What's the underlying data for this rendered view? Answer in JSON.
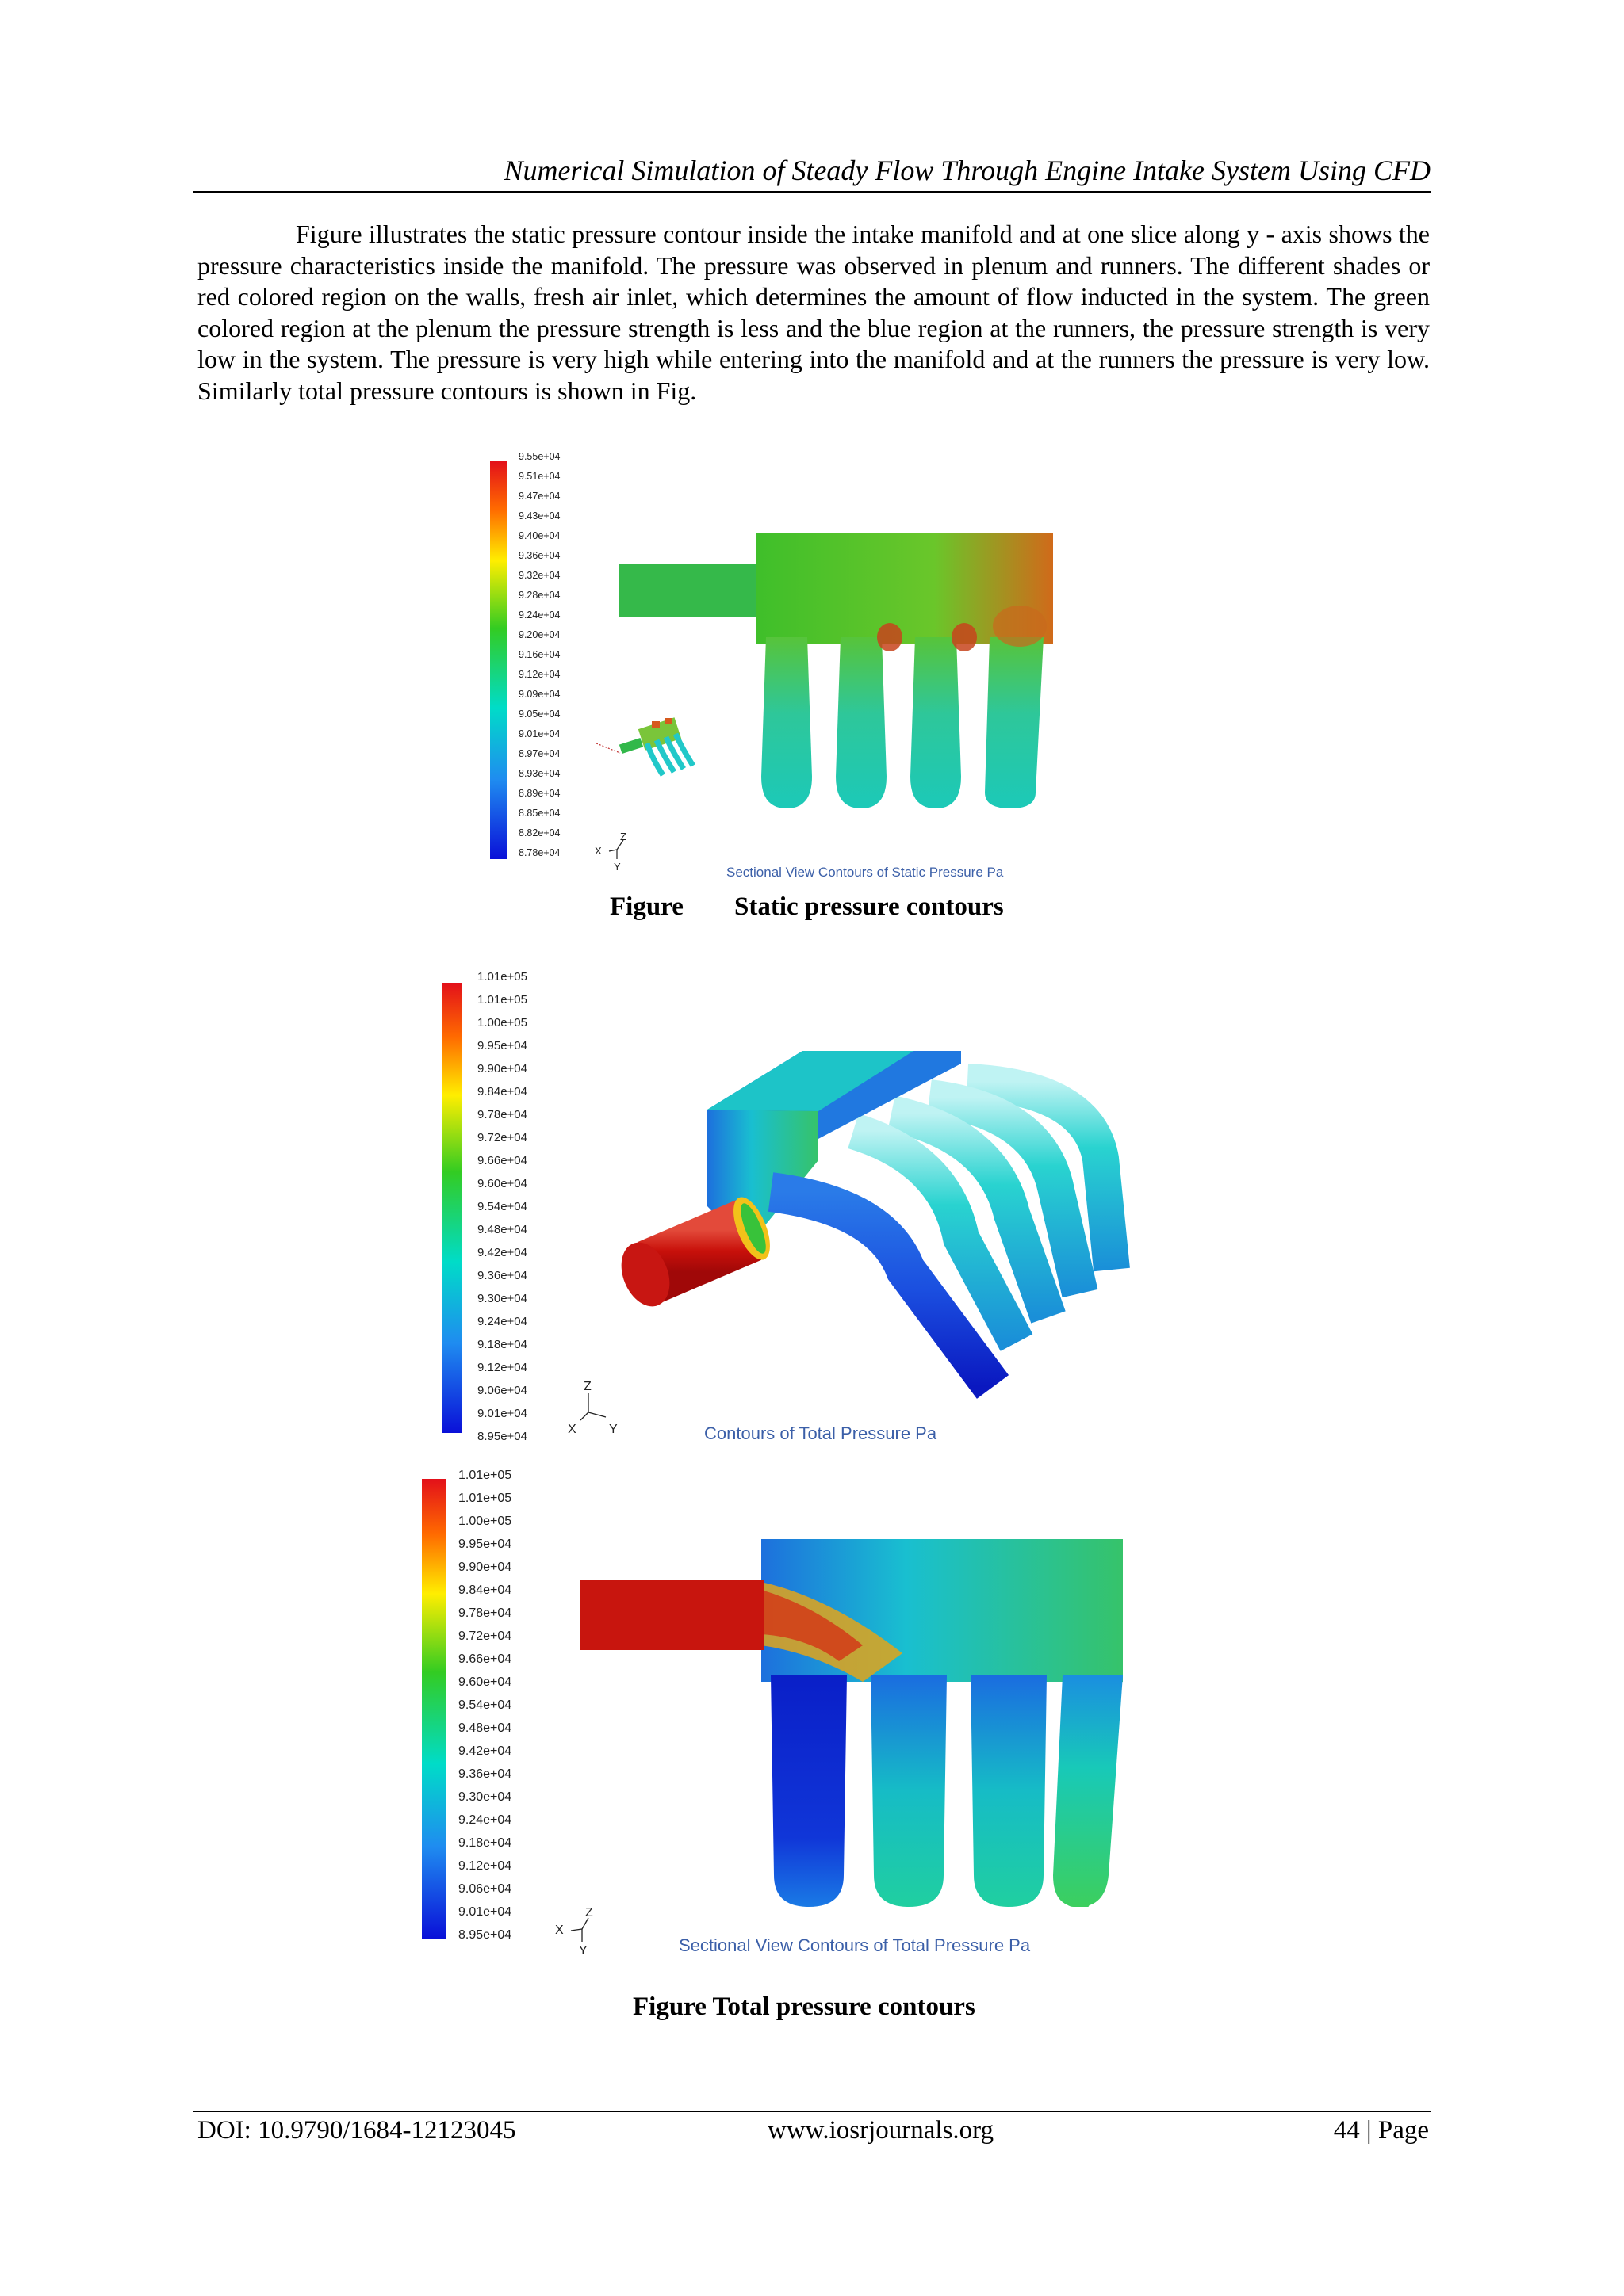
{
  "header": {
    "title": "Numerical Simulation of Steady Flow Through Engine Intake System Using CFD"
  },
  "body": {
    "paragraph": "Figure  illustrates the static pressure contour inside the intake manifold and at one slice along y - axis shows the pressure characteristics inside the manifold. The pressure was observed in plenum and runners. The different shades or red colored region on the walls, fresh air inlet, which determines the amount of flow inducted in the system. The green colored region at the plenum the pressure strength is less and the blue region at the runners, the pressure strength is very low in the system. The pressure is very high while entering into the manifold and at the runners the pressure is very low.  Similarly total pressure contours is shown in Fig."
  },
  "figures": {
    "static": {
      "legend": [
        "9.55e+04",
        "9.51e+04",
        "9.47e+04",
        "9.43e+04",
        "9.40e+04",
        "9.36e+04",
        "9.32e+04",
        "9.28e+04",
        "9.24e+04",
        "9.20e+04",
        "9.16e+04",
        "9.12e+04",
        "9.09e+04",
        "9.05e+04",
        "9.01e+04",
        "8.97e+04",
        "8.93e+04",
        "8.89e+04",
        "8.85e+04",
        "8.82e+04",
        "8.78e+04"
      ],
      "plot_title": "Sectional View Contours  of Static Pressure Pa",
      "axis_labels": {
        "x": "X",
        "z": "Z",
        "y": "Y"
      },
      "dot": ".",
      "caption_left": "Figure",
      "caption_right": "Static pressure contours"
    },
    "total_3d": {
      "legend": [
        "1.01e+05",
        "1.01e+05",
        "1.00e+05",
        "9.95e+04",
        "9.90e+04",
        "9.84e+04",
        "9.78e+04",
        "9.72e+04",
        "9.66e+04",
        "9.60e+04",
        "9.54e+04",
        "9.48e+04",
        "9.42e+04",
        "9.36e+04",
        "9.30e+04",
        "9.24e+04",
        "9.18e+04",
        "9.12e+04",
        "9.06e+04",
        "9.01e+04",
        "8.95e+04"
      ],
      "plot_title": "Contours  of Total Pressure Pa",
      "axis_labels": {
        "x": "X",
        "z": "Z",
        "y": "Y"
      }
    },
    "total_section": {
      "legend": [
        "1.01e+05",
        "1.01e+05",
        "1.00e+05",
        "9.95e+04",
        "9.90e+04",
        "9.84e+04",
        "9.78e+04",
        "9.72e+04",
        "9.66e+04",
        "9.60e+04",
        "9.54e+04",
        "9.48e+04",
        "9.42e+04",
        "9.36e+04",
        "9.30e+04",
        "9.24e+04",
        "9.18e+04",
        "9.12e+04",
        "9.06e+04",
        "9.01e+04",
        "8.95e+04"
      ],
      "plot_title": "Sectional View Contours  of Total Pressure Pa",
      "axis_labels": {
        "x": "X",
        "z": "Z",
        "y": "Y"
      },
      "caption": "Figure Total pressure contours"
    }
  },
  "footer": {
    "doi": "DOI: 10.9790/1684-12123045",
    "website": "www.iosrjournals.org",
    "page": "44 | Page"
  },
  "colors": {
    "scale_top": "#e31a1c",
    "scale_mid": "#33cc33",
    "scale_low": "#00ccdd",
    "scale_bottom": "#1010dd"
  }
}
